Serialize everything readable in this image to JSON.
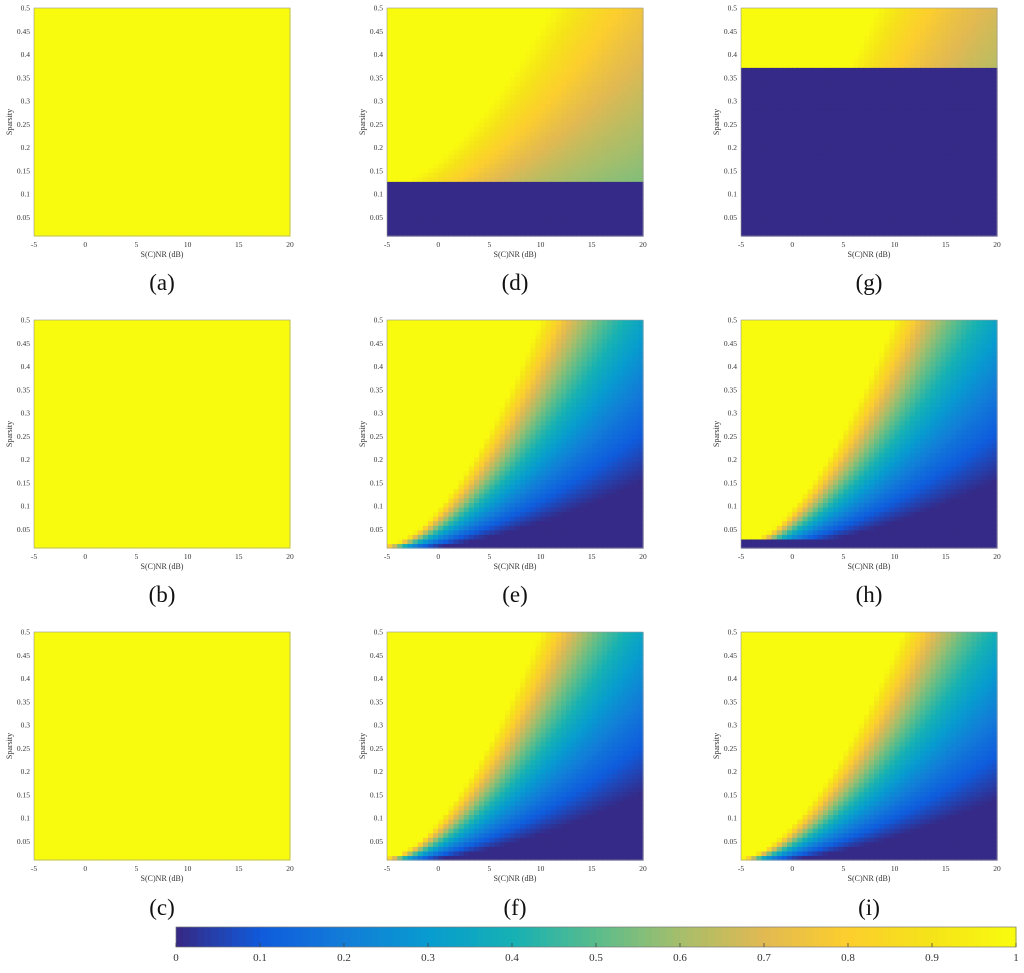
{
  "chart_data": {
    "type": "heatmap",
    "colormap": "parula",
    "colorbar": {
      "ticks": [
        "0",
        "0.1",
        "0.2",
        "0.3",
        "0.4",
        "0.5",
        "0.6",
        "0.7",
        "0.8",
        "0.9",
        "1"
      ],
      "range": [
        0,
        1
      ]
    },
    "shared_axes": {
      "xlabel": "S(C)NR (dB)",
      "ylabel": "Sparsity",
      "xlim": [
        -5,
        20
      ],
      "ylim": [
        0.01,
        0.5
      ],
      "xticks": [
        "-5",
        "0",
        "5",
        "10",
        "15",
        "20"
      ],
      "yticks": [
        "0.05",
        "0.1",
        "0.15",
        "0.2",
        "0.25",
        "0.3",
        "0.35",
        "0.4",
        "0.45",
        "0.5"
      ]
    },
    "panels": [
      {
        "label": "(a)",
        "pattern": "uniform",
        "value": 1.0
      },
      {
        "label": "(b)",
        "pattern": "uniform",
        "value": 1.0
      },
      {
        "label": "(c)",
        "pattern": "uniform",
        "value": 1.0
      },
      {
        "label": "(d)",
        "pattern": "boundary",
        "a": 0.12,
        "b": 0.0033,
        "rmax": 0.42,
        "floor": 0.55,
        "zero_below": 0.128
      },
      {
        "label": "(e)",
        "pattern": "boundary",
        "a": 0.018,
        "b": 0.0047,
        "rmax": 0.49,
        "floor": 0.0,
        "zero_below": null
      },
      {
        "label": "(f)",
        "pattern": "boundary",
        "a": 0.017,
        "b": 0.0047,
        "rmax": 0.49,
        "floor": 0.0,
        "zero_below": null
      },
      {
        "label": "(g)",
        "pattern": "boundary",
        "a": 0.1,
        "b": 0.0048,
        "rmax": 0.4,
        "floor": 0.55,
        "zero_below": 0.375
      },
      {
        "label": "(h)",
        "pattern": "boundary",
        "a": 0.018,
        "b": 0.0047,
        "rmax": 0.49,
        "floor": 0.0,
        "zero_below": 0.025
      },
      {
        "label": "(i)",
        "pattern": "boundary",
        "a": 0.015,
        "b": 0.0043,
        "rmax": 0.47,
        "floor": 0.0,
        "zero_below": null
      }
    ]
  }
}
